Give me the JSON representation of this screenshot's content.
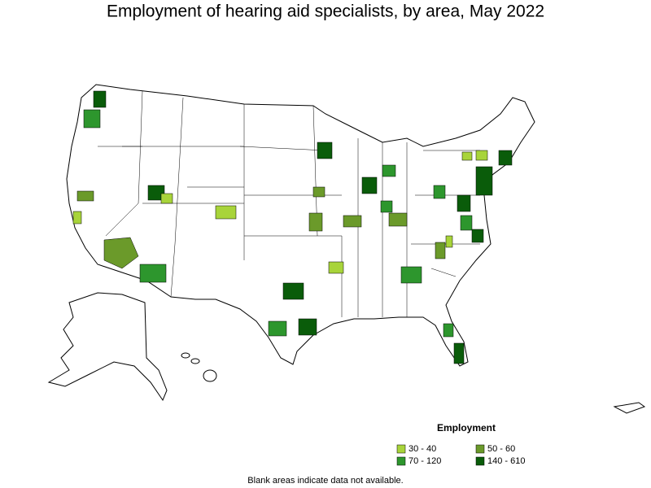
{
  "title": "Employment of hearing aid specialists, by area, May 2022",
  "legend": {
    "title": "Employment",
    "items": [
      {
        "label": "30 - 40",
        "color": "#a8d43a"
      },
      {
        "label": "50 - 60",
        "color": "#6b9a2a"
      },
      {
        "label": "70 - 120",
        "color": "#2d962d"
      },
      {
        "label": "140 - 610",
        "color": "#0a5c0a"
      }
    ]
  },
  "footnote": "Blank areas indicate data not available."
}
